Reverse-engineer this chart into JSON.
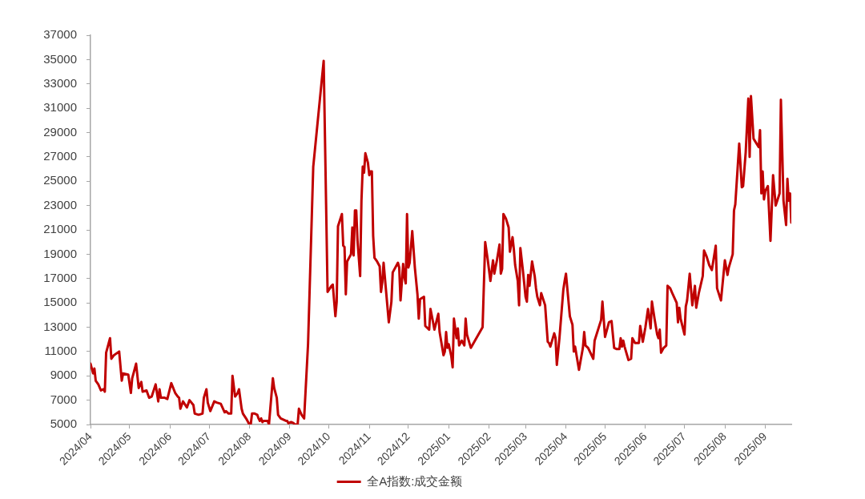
{
  "chart_data": {
    "type": "line",
    "x": [
      "2024-04-01",
      "2024-04-03",
      "2024-04-04",
      "2024-04-05",
      "2024-04-07",
      "2024-04-09",
      "2024-04-11",
      "2024-04-12",
      "2024-04-13",
      "2024-04-16",
      "2024-04-17",
      "2024-04-19",
      "2024-04-23",
      "2024-04-25",
      "2024-04-26",
      "2024-04-30",
      "2024-05-02",
      "2024-05-03",
      "2024-05-06",
      "2024-05-08",
      "2024-05-10",
      "2024-05-11",
      "2024-05-14",
      "2024-05-16",
      "2024-05-18",
      "2024-05-21",
      "2024-05-23",
      "2024-05-24",
      "2024-05-25",
      "2024-05-28",
      "2024-05-30",
      "2024-06-02",
      "2024-06-05",
      "2024-06-07",
      "2024-06-08",
      "2024-06-09",
      "2024-06-11",
      "2024-06-14",
      "2024-06-16",
      "2024-06-19",
      "2024-06-20",
      "2024-06-23",
      "2024-06-26",
      "2024-06-27",
      "2024-06-29",
      "2024-06-30",
      "2024-07-02",
      "2024-07-05",
      "2024-07-07",
      "2024-07-10",
      "2024-07-13",
      "2024-07-14",
      "2024-07-16",
      "2024-07-18",
      "2024-07-19",
      "2024-07-21",
      "2024-07-23",
      "2024-07-24",
      "2024-07-26",
      "2024-07-27",
      "2024-07-30",
      "2024-08-01",
      "2024-08-02",
      "2024-08-03",
      "2024-08-05",
      "2024-08-07",
      "2024-08-08",
      "2024-08-09",
      "2024-08-10",
      "2024-08-11",
      "2024-08-12",
      "2024-08-15",
      "2024-08-16",
      "2024-08-19",
      "2024-08-20",
      "2024-08-22",
      "2024-08-23",
      "2024-08-25",
      "2024-08-27",
      "2024-08-29",
      "2024-08-30",
      "2024-08-31",
      "2024-09-02",
      "2024-09-04",
      "2024-09-05",
      "2024-09-07",
      "2024-09-08",
      "2024-09-10",
      "2024-09-12",
      "2024-09-15",
      "2024-09-19",
      "2024-09-27",
      "2024-09-30",
      "2024-10-03",
      "2024-10-04",
      "2024-10-06",
      "2024-10-07",
      "2024-10-08",
      "2024-10-11",
      "2024-10-12",
      "2024-10-13",
      "2024-10-14",
      "2024-10-15",
      "2024-10-18",
      "2024-10-19",
      "2024-10-20",
      "2024-10-21",
      "2024-10-22",
      "2024-10-23",
      "2024-10-25",
      "2024-10-26",
      "2024-10-27",
      "2024-10-28",
      "2024-10-29",
      "2024-10-31",
      "2024-11-01",
      "2024-11-02",
      "2024-11-03",
      "2024-11-04",
      "2024-11-05",
      "2024-11-07",
      "2024-11-09",
      "2024-11-10",
      "2024-11-11",
      "2024-11-12",
      "2024-11-16",
      "2024-11-18",
      "2024-11-19",
      "2024-11-23",
      "2024-11-24",
      "2024-11-25",
      "2024-11-27",
      "2024-11-28",
      "2024-11-29",
      "2024-11-30",
      "2024-12-01",
      "2024-12-02",
      "2024-12-04",
      "2024-12-06",
      "2024-12-08",
      "2024-12-09",
      "2024-12-10",
      "2024-12-13",
      "2024-12-14",
      "2024-12-17",
      "2024-12-18",
      "2024-12-20",
      "2024-12-21",
      "2024-12-24",
      "2024-12-25",
      "2024-12-28",
      "2024-12-29",
      "2024-12-30",
      "2024-12-31",
      "2025-01-01",
      "2025-01-03",
      "2025-01-04",
      "2025-01-05",
      "2025-01-07",
      "2025-01-08",
      "2025-01-09",
      "2025-01-11",
      "2025-01-13",
      "2025-01-14",
      "2025-01-15",
      "2025-01-18",
      "2025-01-27",
      "2025-01-29",
      "2025-01-31",
      "2025-02-02",
      "2025-02-04",
      "2025-02-05",
      "2025-02-07",
      "2025-02-09",
      "2025-02-10",
      "2025-02-11",
      "2025-02-12",
      "2025-02-14",
      "2025-02-16",
      "2025-02-17",
      "2025-02-19",
      "2025-02-20",
      "2025-02-21",
      "2025-02-23",
      "2025-02-24",
      "2025-02-25",
      "2025-02-27",
      "2025-03-01",
      "2025-03-02",
      "2025-03-03",
      "2025-03-04",
      "2025-03-06",
      "2025-03-08",
      "2025-03-09",
      "2025-03-10",
      "2025-03-12",
      "2025-03-13",
      "2025-03-16",
      "2025-03-18",
      "2025-03-19",
      "2025-03-20",
      "2025-03-23",
      "2025-03-24",
      "2025-03-25",
      "2025-03-27",
      "2025-03-30",
      "2025-03-31",
      "2025-04-01",
      "2025-04-04",
      "2025-04-06",
      "2025-04-07",
      "2025-04-08",
      "2025-04-11",
      "2025-04-14",
      "2025-04-15",
      "2025-04-16",
      "2025-04-18",
      "2025-04-22",
      "2025-04-23",
      "2025-04-28",
      "2025-04-29",
      "2025-05-01",
      "2025-05-04",
      "2025-05-06",
      "2025-05-08",
      "2025-05-10",
      "2025-05-12",
      "2025-05-13",
      "2025-05-14",
      "2025-05-15",
      "2025-05-16",
      "2025-05-19",
      "2025-05-21",
      "2025-05-22",
      "2025-05-24",
      "2025-05-27",
      "2025-05-28",
      "2025-05-30",
      "2025-06-01",
      "2025-06-03",
      "2025-06-05",
      "2025-06-06",
      "2025-06-08",
      "2025-06-10",
      "2025-06-11",
      "2025-06-12",
      "2025-06-13",
      "2025-06-15",
      "2025-06-17",
      "2025-06-18",
      "2025-06-20",
      "2025-06-22",
      "2025-06-25",
      "2025-06-26",
      "2025-06-27",
      "2025-06-28",
      "2025-07-01",
      "2025-07-02",
      "2025-07-03",
      "2025-07-05",
      "2025-07-07",
      "2025-07-09",
      "2025-07-10",
      "2025-07-12",
      "2025-07-15",
      "2025-07-16",
      "2025-07-18",
      "2025-07-20",
      "2025-07-22",
      "2025-07-25",
      "2025-07-26",
      "2025-07-29",
      "2025-08-01",
      "2025-08-03",
      "2025-08-04",
      "2025-08-07",
      "2025-08-08",
      "2025-08-09",
      "2025-08-12",
      "2025-08-14",
      "2025-08-15",
      "2025-08-17",
      "2025-08-19",
      "2025-08-20",
      "2025-08-21",
      "2025-08-23",
      "2025-08-27",
      "2025-08-28",
      "2025-08-29",
      "2025-08-30",
      "2025-08-31",
      "2025-09-01",
      "2025-09-03",
      "2025-09-05",
      "2025-09-07",
      "2025-09-09",
      "2025-09-12",
      "2025-09-13",
      "2025-09-15",
      "2025-09-17",
      "2025-09-18",
      "2025-09-19",
      "2025-09-20",
      "2025-09-21"
    ],
    "series": [
      {
        "name": "全A指数:成交金额",
        "color": "#c00000",
        "values": [
          10000,
          9200,
          9600,
          8600,
          8300,
          7800,
          7900,
          7700,
          10900,
          12100,
          10400,
          10700,
          11000,
          8600,
          9200,
          9100,
          7600,
          8800,
          10000,
          8000,
          8500,
          7700,
          7800,
          7200,
          7300,
          8300,
          6900,
          7900,
          7200,
          7200,
          7100,
          8400,
          7600,
          7300,
          7200,
          6300,
          6900,
          6400,
          7000,
          6600,
          5900,
          5800,
          5900,
          7200,
          7900,
          6800,
          6100,
          6900,
          6800,
          6700,
          6000,
          6100,
          5900,
          5900,
          9000,
          7300,
          7600,
          7900,
          6300,
          5900,
          5400,
          5000,
          5000,
          5900,
          5900,
          5800,
          5500,
          5300,
          5500,
          5200,
          5300,
          5300,
          5000,
          8800,
          8000,
          7200,
          5800,
          5500,
          5400,
          5300,
          5300,
          5100,
          5200,
          5100,
          5000,
          5000,
          6300,
          5800,
          5500,
          11600,
          26200,
          34900,
          15900,
          16400,
          16500,
          13900,
          15100,
          21300,
          22300,
          19700,
          19600,
          15700,
          18400,
          19000,
          21200,
          18900,
          22600,
          22600,
          20100,
          17200,
          23400,
          26200,
          25700,
          27300,
          26500,
          25500,
          25800,
          25800,
          20500,
          18700,
          18400,
          18000,
          15900,
          16700,
          18300,
          13400,
          15100,
          17500,
          18300,
          17900,
          15200,
          18200,
          17100,
          16600,
          22300,
          17900,
          18300,
          20900,
          17900,
          15700,
          13700,
          15300,
          15500,
          13100,
          12800,
          14500,
          13400,
          12800,
          14100,
          12600,
          10700,
          11000,
          12600,
          11300,
          11600,
          10600,
          9700,
          13700,
          12100,
          12900,
          11500,
          11900,
          11500,
          13700,
          12400,
          11300,
          13000,
          20000,
          18500,
          16800,
          18500,
          17400,
          18500,
          19800,
          17400,
          17800,
          22300,
          21900,
          21200,
          19200,
          20400,
          19400,
          18100,
          16800,
          14800,
          19500,
          17600,
          15500,
          15100,
          17300,
          16400,
          18400,
          17200,
          16200,
          15500,
          14800,
          15800,
          14800,
          11800,
          11700,
          11400,
          12500,
          12100,
          9900,
          12100,
          16100,
          16800,
          17400,
          13900,
          13200,
          11000,
          11400,
          9500,
          11300,
          12600,
          11500,
          11300,
          10400,
          11900,
          13600,
          15100,
          12200,
          13400,
          13500,
          11300,
          11200,
          11200,
          12100,
          11400,
          11900,
          11400,
          10300,
          10400,
          12100,
          11700,
          11700,
          13100,
          11800,
          13000,
          14500,
          12900,
          15100,
          13700,
          12400,
          12100,
          12800,
          10900,
          11300,
          11500,
          16400,
          16200,
          15700,
          15000,
          13400,
          14600,
          13700,
          12400,
          14700,
          15200,
          17400,
          14800,
          16400,
          14600,
          15800,
          17200,
          19300,
          18800,
          18100,
          17700,
          19700,
          16200,
          15200,
          18500,
          17300,
          17900,
          19000,
          22600,
          23100,
          28100,
          24500,
          24600,
          27400,
          31800,
          27000,
          32000,
          28500,
          27800,
          29200,
          24000,
          25800,
          23500,
          24200,
          24600,
          20100,
          25500,
          23000,
          24000,
          31700,
          23400,
          21400,
          25200,
          23400,
          24000,
          21600
        ]
      }
    ],
    "xlim": [
      "2024-04-01",
      "2025-09-21"
    ],
    "xticks": [
      {
        "value": "2024-04-01",
        "label": "2024/04"
      },
      {
        "value": "2024-05-01",
        "label": "2024/05"
      },
      {
        "value": "2024-06-01",
        "label": "2024/06"
      },
      {
        "value": "2024-07-01",
        "label": "2024/07"
      },
      {
        "value": "2024-08-01",
        "label": "2024/08"
      },
      {
        "value": "2024-09-01",
        "label": "2024/09"
      },
      {
        "value": "2024-10-01",
        "label": "2024/10"
      },
      {
        "value": "2024-11-01",
        "label": "2024/11"
      },
      {
        "value": "2024-12-01",
        "label": "2024/12"
      },
      {
        "value": "2025-01-01",
        "label": "2025/01"
      },
      {
        "value": "2025-02-01",
        "label": "2025/02"
      },
      {
        "value": "2025-03-01",
        "label": "2025/03"
      },
      {
        "value": "2025-04-01",
        "label": "2025/04"
      },
      {
        "value": "2025-05-01",
        "label": "2025/05"
      },
      {
        "value": "2025-06-01",
        "label": "2025/06"
      },
      {
        "value": "2025-07-01",
        "label": "2025/07"
      },
      {
        "value": "2025-08-01",
        "label": "2025/08"
      },
      {
        "value": "2025-09-01",
        "label": "2025/09"
      }
    ],
    "ylim": [
      5000,
      37000
    ],
    "yticks": [
      5000,
      7000,
      9000,
      11000,
      13000,
      15000,
      17000,
      19000,
      21000,
      23000,
      25000,
      27000,
      29000,
      31000,
      33000,
      35000,
      37000
    ],
    "legend": "bottom"
  }
}
